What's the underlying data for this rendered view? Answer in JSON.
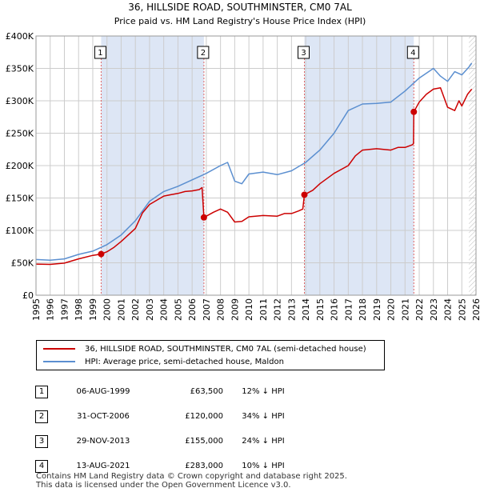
{
  "chart_data": {
    "type": "line",
    "title": "36, HILLSIDE ROAD, SOUTHMINSTER, CM0 7AL",
    "subtitle": "Price paid vs. HM Land Registry's House Price Index (HPI)",
    "xlim": [
      1995,
      2026
    ],
    "ylim": [
      0,
      400000
    ],
    "x_ticks": [
      1995,
      1996,
      1997,
      1998,
      1999,
      2000,
      2001,
      2002,
      2003,
      2004,
      2005,
      2006,
      2007,
      2008,
      2009,
      2010,
      2011,
      2012,
      2013,
      2014,
      2015,
      2016,
      2017,
      2018,
      2019,
      2020,
      2021,
      2022,
      2023,
      2024,
      2025,
      2026
    ],
    "y_ticks": [
      {
        "value": 0,
        "label": "£0"
      },
      {
        "value": 50000,
        "label": "£50K"
      },
      {
        "value": 100000,
        "label": "£100K"
      },
      {
        "value": 150000,
        "label": "£150K"
      },
      {
        "value": 200000,
        "label": "£200K"
      },
      {
        "value": 250000,
        "label": "£250K"
      },
      {
        "value": 300000,
        "label": "£300K"
      },
      {
        "value": 350000,
        "label": "£350K"
      },
      {
        "value": 400000,
        "label": "£400K"
      }
    ],
    "grid": true,
    "colors": {
      "property": "#cc0000",
      "hpi": "#5b8fd0",
      "shade": "#dde6f5"
    },
    "series": [
      {
        "name": "36, HILLSIDE ROAD, SOUTHMINSTER, CM0 7AL (semi-detached house)",
        "points": [
          [
            1995.0,
            48000
          ],
          [
            1996.0,
            47500
          ],
          [
            1997.0,
            49500
          ],
          [
            1998.0,
            56000
          ],
          [
            1999.0,
            61500
          ],
          [
            1999.59,
            63500
          ],
          [
            2000.0,
            67000
          ],
          [
            2000.5,
            74000
          ],
          [
            2001.0,
            83000
          ],
          [
            2002.0,
            103000
          ],
          [
            2002.5,
            127000
          ],
          [
            2003.0,
            140000
          ],
          [
            2004.0,
            153000
          ],
          [
            2004.5,
            155000
          ],
          [
            2005.0,
            157000
          ],
          [
            2005.5,
            160000
          ],
          [
            2006.0,
            161000
          ],
          [
            2006.5,
            163000
          ],
          [
            2006.7,
            166000
          ],
          [
            2006.83,
            120000
          ],
          [
            2007.0,
            122000
          ],
          [
            2007.5,
            128000
          ],
          [
            2008.0,
            133000
          ],
          [
            2008.5,
            128000
          ],
          [
            2009.0,
            113000
          ],
          [
            2009.5,
            114000
          ],
          [
            2010.0,
            121000
          ],
          [
            2011.0,
            123000
          ],
          [
            2012.0,
            122000
          ],
          [
            2012.5,
            126000
          ],
          [
            2013.0,
            126000
          ],
          [
            2013.5,
            130000
          ],
          [
            2013.8,
            133000
          ],
          [
            2013.91,
            155000
          ],
          [
            2014.5,
            162000
          ],
          [
            2015.0,
            172000
          ],
          [
            2016.0,
            188000
          ],
          [
            2017.0,
            200000
          ],
          [
            2017.5,
            215000
          ],
          [
            2018.0,
            224000
          ],
          [
            2019.0,
            226000
          ],
          [
            2020.0,
            224000
          ],
          [
            2020.5,
            228000
          ],
          [
            2021.0,
            228000
          ],
          [
            2021.5,
            232000
          ],
          [
            2021.6,
            234000
          ],
          [
            2021.62,
            283000
          ],
          [
            2022.0,
            298000
          ],
          [
            2022.5,
            310000
          ],
          [
            2023.0,
            318000
          ],
          [
            2023.5,
            320000
          ],
          [
            2024.0,
            290000
          ],
          [
            2024.5,
            285000
          ],
          [
            2024.8,
            300000
          ],
          [
            2025.0,
            292000
          ],
          [
            2025.4,
            310000
          ],
          [
            2025.7,
            318000
          ]
        ]
      },
      {
        "name": "HPI: Average price, semi-detached house, Maldon",
        "points": [
          [
            1995.0,
            55000
          ],
          [
            1996.0,
            54000
          ],
          [
            1997.0,
            56000
          ],
          [
            1998.0,
            63000
          ],
          [
            1999.0,
            68000
          ],
          [
            2000.0,
            78000
          ],
          [
            2001.0,
            93000
          ],
          [
            2002.0,
            115000
          ],
          [
            2003.0,
            145000
          ],
          [
            2004.0,
            160000
          ],
          [
            2005.0,
            168000
          ],
          [
            2006.0,
            178000
          ],
          [
            2007.0,
            188000
          ],
          [
            2008.0,
            200000
          ],
          [
            2008.5,
            205000
          ],
          [
            2009.0,
            176000
          ],
          [
            2009.5,
            172000
          ],
          [
            2010.0,
            187000
          ],
          [
            2011.0,
            190000
          ],
          [
            2012.0,
            186000
          ],
          [
            2013.0,
            192000
          ],
          [
            2014.0,
            205000
          ],
          [
            2015.0,
            224000
          ],
          [
            2016.0,
            250000
          ],
          [
            2017.0,
            285000
          ],
          [
            2018.0,
            295000
          ],
          [
            2019.0,
            296000
          ],
          [
            2020.0,
            298000
          ],
          [
            2021.0,
            315000
          ],
          [
            2022.0,
            335000
          ],
          [
            2023.0,
            350000
          ],
          [
            2023.5,
            338000
          ],
          [
            2024.0,
            330000
          ],
          [
            2024.5,
            345000
          ],
          [
            2025.0,
            340000
          ],
          [
            2025.5,
            352000
          ],
          [
            2025.7,
            358000
          ]
        ]
      }
    ],
    "sales": [
      {
        "num": "1",
        "x": 1999.59,
        "price": 63500
      },
      {
        "num": "2",
        "x": 2006.83,
        "price": 120000
      },
      {
        "num": "3",
        "x": 2013.91,
        "price": 155000
      },
      {
        "num": "4",
        "x": 2021.62,
        "price": 283000
      }
    ],
    "forecast_from": 2025.5
  },
  "legend": {
    "property_label": "36, HILLSIDE ROAD, SOUTHMINSTER, CM0 7AL (semi-detached house)",
    "hpi_label": "HPI: Average price, semi-detached house, Maldon"
  },
  "transactions": [
    {
      "num": "1",
      "date": "06-AUG-1999",
      "price": "£63,500",
      "delta": "12% ↓ HPI"
    },
    {
      "num": "2",
      "date": "31-OCT-2006",
      "price": "£120,000",
      "delta": "34% ↓ HPI"
    },
    {
      "num": "3",
      "date": "29-NOV-2013",
      "price": "£155,000",
      "delta": "24% ↓ HPI"
    },
    {
      "num": "4",
      "date": "13-AUG-2021",
      "price": "£283,000",
      "delta": "10% ↓ HPI"
    }
  ],
  "footer": {
    "line1": "Contains HM Land Registry data © Crown copyright and database right 2025.",
    "line2": "This data is licensed under the Open Government Licence v3.0."
  }
}
